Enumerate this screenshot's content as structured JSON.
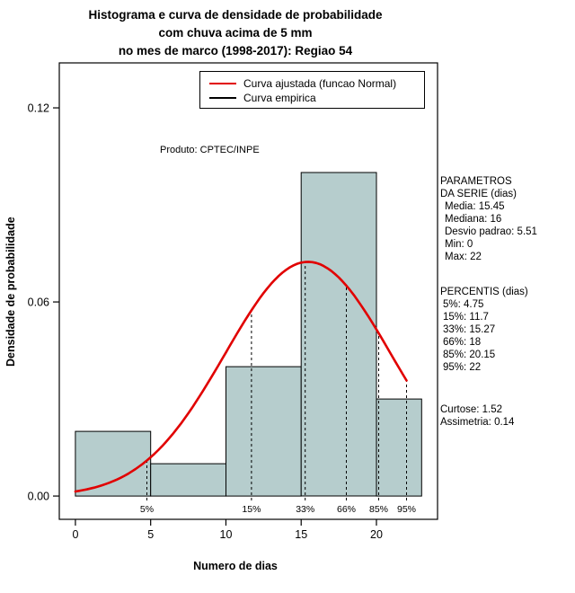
{
  "title": {
    "line1": "Histograma e curva de densidade de probabilidade",
    "line2": "com chuva acima de 5 mm",
    "line3": "no mes de marco (1998-2017): Regiao 54"
  },
  "annotation": "Produto: CPTEC/INPE",
  "legend": {
    "items": [
      {
        "label": "Curva ajustada (funcao Normal)",
        "color": "#e10000"
      },
      {
        "label": "Curva empirica",
        "color": "#000000"
      }
    ]
  },
  "axes": {
    "x": {
      "label": "Numero de dias",
      "ticks": [
        0,
        5,
        10,
        15,
        20
      ]
    },
    "y": {
      "label": "Densidade de probabilidade",
      "ticks": [
        {
          "label": "0.00",
          "value": 0
        },
        {
          "label": "0.06",
          "value": 0.06
        },
        {
          "label": "0.12",
          "value": 0.12
        }
      ]
    }
  },
  "chart_data": {
    "type": "bar",
    "subtype": "histogram-with-fitted-normal-density",
    "title": "Histograma e curva de densidade de probabilidade com chuva acima de 5 mm no mes de marco (1998-2017): Regiao 54",
    "xlabel": "Numero de dias",
    "ylabel": "Densidade de probabilidade",
    "xlim": [
      -1.07,
      24.06
    ],
    "ylim": [
      -0.0072,
      0.1339
    ],
    "grid": false,
    "legend_position": "top-right-inside",
    "bar_fill": "#b6cdcd",
    "bar_stroke": "#000000",
    "bins": {
      "edges": [
        0,
        5,
        10,
        15,
        20,
        23
      ],
      "densities": [
        0.02,
        0.01,
        0.04,
        0.1,
        0.03
      ]
    },
    "normal_curve": {
      "mean": 15.45,
      "sd": 5.51,
      "x_range": [
        0,
        22
      ],
      "color": "#e10000"
    },
    "percentile_lines": [
      {
        "label": "5%",
        "x": 4.75
      },
      {
        "label": "15%",
        "x": 11.7
      },
      {
        "label": "33%",
        "x": 15.27
      },
      {
        "label": "66%",
        "x": 18
      },
      {
        "label": "85%",
        "x": 20.15
      },
      {
        "label": "95%",
        "x": 22
      }
    ]
  },
  "stats": {
    "params_title1": "PARAMETROS",
    "params_title2": "DA SERIE (dias)",
    "params": [
      "Media: 15.45",
      "Mediana: 16",
      "Desvio padrao: 5.51",
      "Min: 0",
      "Max: 22"
    ],
    "percentis_title": "PERCENTIS (dias)",
    "percentis": [
      "5%: 4.75",
      "15%: 11.7",
      "33%: 15.27",
      "66%: 18",
      "85%: 20.15",
      "95%: 22"
    ],
    "moments": [
      "Curtose: 1.52",
      "Assimetria: 0.14"
    ]
  }
}
